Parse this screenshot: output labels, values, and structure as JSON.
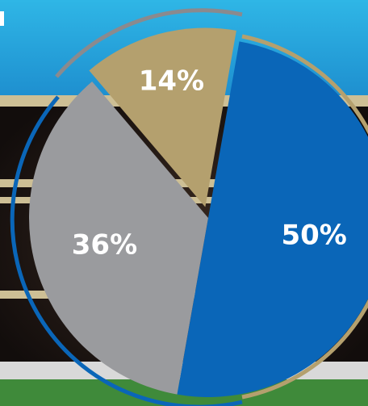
{
  "chart_data": {
    "type": "pie",
    "values": [
      50,
      36,
      14
    ],
    "value_labels": [
      "50%",
      "36%",
      "14%"
    ],
    "colors": [
      "#0a66b8",
      "#9a9b9e",
      "#b4a06e"
    ]
  }
}
